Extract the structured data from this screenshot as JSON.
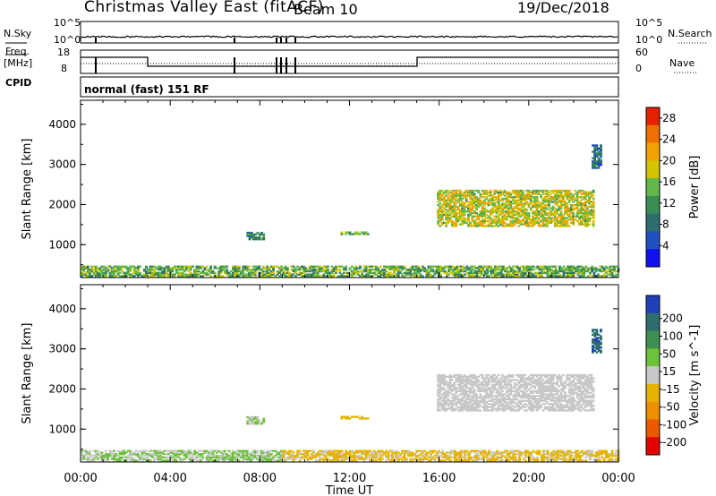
{
  "header": {
    "station": "Christmas Valley East (fitACF)",
    "beam": "Beam 10",
    "date": "19/Dec/2018"
  },
  "params": {
    "nsky_label": "N.Sky",
    "nsky_tick_top": "10^5",
    "nsky_tick_bottom": "10^0",
    "nsearch_label": "N.Search",
    "nsearch_tick_top": "10^5",
    "nsearch_tick_bottom": "10^0",
    "freq_label": "Freq.",
    "freq_unit": "[MHz]",
    "freq_tick_top": "18",
    "freq_tick_bottom": "8",
    "nave_label": "Nave",
    "nave_tick_top": "60",
    "nave_tick_bottom": "0",
    "cpid_label": "CPID",
    "cpid_value": "normal (fast) 151 RF"
  },
  "colors": {
    "frame": "#000000",
    "power_scale": [
      "#1010f0",
      "#2050c0",
      "#2f6e6e",
      "#3a8e55",
      "#62b84a",
      "#d2c400",
      "#f2a200",
      "#ee7000",
      "#e82000"
    ],
    "velocity_scale": [
      "#2040b8",
      "#2f6e6e",
      "#3f8f55",
      "#6dc23a",
      "#c8c8c8",
      "#e6b400",
      "#ef8f00",
      "#ec5a00",
      "#e60000"
    ]
  },
  "chart_data": [
    {
      "type": "heatmap",
      "title": "",
      "quantity": "Power",
      "ylabel": "Slant Range [km]",
      "xlabel": "",
      "xlim": [
        0,
        24
      ],
      "ylim": [
        180,
        4600
      ],
      "yticks": [
        1000,
        2000,
        3000,
        4000
      ],
      "xticks": [
        "00:00",
        "04:00",
        "08:00",
        "12:00",
        "16:00",
        "20:00",
        "00:00"
      ],
      "colorbar": {
        "label": "Power [dB]",
        "ticks": [
          "4",
          "8",
          "12",
          "16",
          "20",
          "24",
          "28"
        ],
        "range": [
          0,
          30
        ]
      },
      "features": [
        {
          "name": "near-range band",
          "t_start": 0.0,
          "t_end": 24.0,
          "range_km": [
            200,
            450
          ],
          "value_db": 14
        },
        {
          "name": "patch",
          "t_start": 7.4,
          "t_end": 8.2,
          "range_km": [
            1120,
            1300
          ],
          "value_db": 10
        },
        {
          "name": "patch",
          "t_start": 11.6,
          "t_end": 12.8,
          "range_km": [
            1250,
            1330
          ],
          "value_db": 14
        },
        {
          "name": "far-range echoes",
          "t_start": 15.9,
          "t_end": 22.9,
          "range_km": [
            1450,
            2350
          ],
          "value_db": 18
        },
        {
          "name": "isolated echoes",
          "t_start": 22.8,
          "t_end": 23.2,
          "range_km": [
            2900,
            3500
          ],
          "value_db": 8
        }
      ]
    },
    {
      "type": "heatmap",
      "title": "",
      "quantity": "Velocity",
      "ylabel": "Slant Range [km]",
      "xlabel": "Time UT",
      "xlim": [
        0,
        24
      ],
      "ylim": [
        180,
        4600
      ],
      "yticks": [
        1000,
        2000,
        3000,
        4000
      ],
      "xticks": [
        "00:00",
        "04:00",
        "08:00",
        "12:00",
        "16:00",
        "20:00",
        "00:00"
      ],
      "colorbar": {
        "label": "Velocity [m s^-1]",
        "ticks": [
          "200",
          "100",
          "50",
          "15",
          "-15",
          "-50",
          "-100",
          "-200"
        ],
        "range": [
          -250,
          250
        ]
      },
      "features": [
        {
          "name": "near-range band early",
          "t_start": 0.0,
          "t_end": 9.0,
          "range_km": [
            200,
            450
          ],
          "value_ms": 30
        },
        {
          "name": "near-range band late",
          "t_start": 9.0,
          "t_end": 24.0,
          "range_km": [
            200,
            450
          ],
          "value_ms": -40
        },
        {
          "name": "patch",
          "t_start": 7.4,
          "t_end": 8.2,
          "range_km": [
            1120,
            1300
          ],
          "value_ms": 30
        },
        {
          "name": "patch",
          "t_start": 11.6,
          "t_end": 12.8,
          "range_km": [
            1250,
            1330
          ],
          "value_ms": -60
        },
        {
          "name": "far-range ground scatter",
          "t_start": 15.9,
          "t_end": 22.9,
          "range_km": [
            1450,
            2350
          ],
          "value_ms": 0
        },
        {
          "name": "isolated echoes",
          "t_start": 22.8,
          "t_end": 23.2,
          "range_km": [
            2900,
            3500
          ],
          "value_ms": 180
        }
      ]
    }
  ]
}
